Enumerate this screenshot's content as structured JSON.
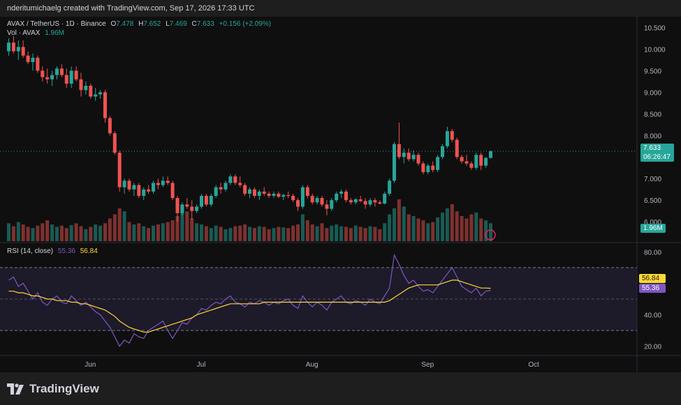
{
  "caption": "nderitumichaelg created with TradingView.com, Sep 17, 2026 17:33 UTC",
  "symbol_line": {
    "symbol": "AVAX / TetherUS · 1D · Binance",
    "o_label": "O",
    "o": "7.478",
    "h_label": "H",
    "h": "7.652",
    "l_label": "L",
    "l": "7.469",
    "c_label": "C",
    "c": "7.633",
    "change": "+0.156 (+2.09%)"
  },
  "vol_line": {
    "label": "Vol · AVAX",
    "value": "1.96M"
  },
  "rsi_line": {
    "label": "RSI (14, close)",
    "rsi": "55.36",
    "ma": "56.84"
  },
  "last_price": {
    "price": "7.633",
    "countdown": "06:26:47"
  },
  "vol_tag": "1.96M",
  "rsi_tags": {
    "ma": "56.84",
    "rsi": "55.36"
  },
  "brand": "TradingView",
  "colors": {
    "up": "#26a69a",
    "down": "#ef5350",
    "rsi": "#7e57c2",
    "rsi_ma": "#fdd835",
    "band": "#2a2540"
  },
  "chart_data": [
    {
      "type": "candlestick",
      "title": "AVAX / TetherUS · 1D · Binance",
      "y_ticks": [
        "10.500",
        "10.000",
        "9.500",
        "9.000",
        "8.500",
        "8.000",
        "7.500",
        "7.000",
        "6.500",
        "6.000"
      ],
      "ylim": [
        5.55,
        10.75
      ],
      "x_ticks": [
        "Jun",
        "Jul",
        "Aug",
        "Sep",
        "Oct"
      ],
      "ohlc": [
        [
          9.95,
          10.25,
          9.85,
          10.15
        ],
        [
          10.15,
          10.3,
          9.9,
          9.95
        ],
        [
          9.95,
          10.2,
          9.75,
          10.05
        ],
        [
          10.05,
          10.2,
          9.8,
          9.85
        ],
        [
          9.85,
          9.95,
          9.65,
          9.7
        ],
        [
          9.7,
          9.9,
          9.5,
          9.8
        ],
        [
          9.8,
          9.85,
          9.45,
          9.5
        ],
        [
          9.5,
          9.6,
          9.25,
          9.35
        ],
        [
          9.35,
          9.55,
          9.2,
          9.3
        ],
        [
          9.3,
          9.5,
          9.15,
          9.4
        ],
        [
          9.4,
          9.6,
          9.3,
          9.55
        ],
        [
          9.55,
          9.65,
          9.35,
          9.4
        ],
        [
          9.4,
          9.55,
          9.1,
          9.2
        ],
        [
          9.2,
          9.6,
          9.1,
          9.5
        ],
        [
          9.5,
          9.6,
          9.25,
          9.3
        ],
        [
          9.3,
          9.45,
          8.9,
          9.05
        ],
        [
          9.05,
          9.25,
          8.95,
          9.15
        ],
        [
          9.15,
          9.2,
          8.85,
          8.9
        ],
        [
          8.9,
          9.1,
          8.8,
          8.95
        ],
        [
          8.95,
          9.05,
          8.85,
          9.0
        ],
        [
          9.0,
          9.05,
          8.3,
          8.4
        ],
        [
          8.4,
          8.45,
          8.0,
          8.05
        ],
        [
          8.05,
          8.1,
          7.55,
          7.6
        ],
        [
          7.6,
          7.65,
          6.7,
          6.8
        ],
        [
          6.8,
          7.0,
          6.65,
          6.95
        ],
        [
          6.95,
          7.0,
          6.7,
          6.75
        ],
        [
          6.75,
          6.9,
          6.6,
          6.85
        ],
        [
          6.85,
          6.9,
          6.55,
          6.6
        ],
        [
          6.6,
          6.8,
          6.5,
          6.75
        ],
        [
          6.75,
          6.85,
          6.65,
          6.7
        ],
        [
          6.7,
          6.95,
          6.65,
          6.9
        ],
        [
          6.9,
          7.0,
          6.75,
          6.85
        ],
        [
          6.85,
          7.05,
          6.8,
          6.95
        ],
        [
          6.95,
          7.05,
          6.85,
          6.9
        ],
        [
          6.9,
          6.95,
          6.5,
          6.55
        ],
        [
          6.55,
          6.6,
          6.0,
          6.2
        ],
        [
          6.2,
          6.45,
          6.15,
          6.4
        ],
        [
          6.4,
          6.55,
          6.3,
          6.35
        ],
        [
          6.35,
          6.5,
          6.05,
          6.25
        ],
        [
          6.25,
          6.4,
          6.2,
          6.35
        ],
        [
          6.35,
          6.65,
          6.3,
          6.6
        ],
        [
          6.6,
          6.65,
          6.35,
          6.4
        ],
        [
          6.4,
          6.65,
          6.35,
          6.6
        ],
        [
          6.6,
          6.85,
          6.55,
          6.8
        ],
        [
          6.8,
          6.9,
          6.65,
          6.75
        ],
        [
          6.75,
          6.95,
          6.7,
          6.9
        ],
        [
          6.9,
          7.1,
          6.85,
          7.05
        ],
        [
          7.05,
          7.1,
          6.85,
          6.9
        ],
        [
          6.9,
          7.05,
          6.8,
          6.85
        ],
        [
          6.85,
          6.9,
          6.6,
          6.65
        ],
        [
          6.65,
          6.8,
          6.55,
          6.75
        ],
        [
          6.75,
          6.8,
          6.55,
          6.6
        ],
        [
          6.6,
          6.75,
          6.5,
          6.7
        ],
        [
          6.7,
          6.8,
          6.6,
          6.65
        ],
        [
          6.65,
          6.7,
          6.55,
          6.6
        ],
        [
          6.6,
          6.7,
          6.55,
          6.65
        ],
        [
          6.65,
          6.7,
          6.55,
          6.58
        ],
        [
          6.58,
          6.65,
          6.5,
          6.62
        ],
        [
          6.62,
          6.7,
          6.55,
          6.6
        ],
        [
          6.6,
          6.65,
          6.45,
          6.5
        ],
        [
          6.5,
          6.55,
          6.25,
          6.35
        ],
        [
          6.35,
          6.85,
          6.3,
          6.8
        ],
        [
          6.8,
          6.85,
          6.55,
          6.6
        ],
        [
          6.6,
          6.65,
          6.4,
          6.45
        ],
        [
          6.45,
          6.6,
          6.4,
          6.55
        ],
        [
          6.55,
          6.6,
          6.35,
          6.4
        ],
        [
          6.4,
          6.5,
          6.15,
          6.3
        ],
        [
          6.3,
          6.55,
          6.25,
          6.5
        ],
        [
          6.5,
          6.7,
          6.45,
          6.65
        ],
        [
          6.65,
          6.75,
          6.55,
          6.7
        ],
        [
          6.7,
          6.75,
          6.45,
          6.5
        ],
        [
          6.5,
          6.55,
          6.4,
          6.45
        ],
        [
          6.45,
          6.55,
          6.4,
          6.52
        ],
        [
          6.52,
          6.6,
          6.45,
          6.48
        ],
        [
          6.48,
          6.55,
          6.3,
          6.4
        ],
        [
          6.4,
          6.55,
          6.35,
          6.5
        ],
        [
          6.5,
          6.55,
          6.35,
          6.45
        ],
        [
          6.45,
          6.5,
          6.4,
          6.42
        ],
        [
          6.42,
          6.7,
          6.4,
          6.65
        ],
        [
          6.65,
          7.0,
          6.6,
          6.95
        ],
        [
          6.95,
          7.85,
          6.9,
          7.8
        ],
        [
          7.8,
          8.3,
          7.45,
          7.5
        ],
        [
          7.5,
          7.7,
          7.35,
          7.6
        ],
        [
          7.6,
          7.7,
          7.4,
          7.45
        ],
        [
          7.45,
          7.65,
          7.4,
          7.55
        ],
        [
          7.55,
          7.6,
          7.3,
          7.35
        ],
        [
          7.35,
          7.4,
          7.1,
          7.15
        ],
        [
          7.15,
          7.35,
          7.1,
          7.3
        ],
        [
          7.3,
          7.4,
          7.15,
          7.2
        ],
        [
          7.2,
          7.55,
          7.15,
          7.5
        ],
        [
          7.5,
          7.8,
          7.45,
          7.75
        ],
        [
          7.75,
          8.2,
          7.7,
          8.1
        ],
        [
          8.1,
          8.15,
          7.85,
          7.9
        ],
        [
          7.9,
          7.95,
          7.45,
          7.5
        ],
        [
          7.5,
          7.55,
          7.35,
          7.4
        ],
        [
          7.4,
          7.55,
          7.3,
          7.35
        ],
        [
          7.35,
          7.4,
          7.2,
          7.25
        ],
        [
          7.25,
          7.6,
          7.2,
          7.55
        ],
        [
          7.55,
          7.6,
          7.2,
          7.3
        ],
        [
          7.3,
          7.5,
          7.25,
          7.48
        ],
        [
          7.478,
          7.652,
          7.469,
          7.633
        ]
      ]
    },
    {
      "type": "bar",
      "title": "Vol · AVAX",
      "last_value_label": "1.96M",
      "values": [
        30,
        25,
        32,
        28,
        24,
        22,
        26,
        30,
        35,
        28,
        24,
        26,
        22,
        27,
        30,
        25,
        20,
        24,
        28,
        26,
        30,
        38,
        45,
        55,
        50,
        32,
        28,
        30,
        25,
        22,
        26,
        28,
        30,
        32,
        35,
        42,
        55,
        50,
        38,
        30,
        28,
        25,
        22,
        26,
        24,
        20,
        22,
        25,
        26,
        28,
        24,
        22,
        25,
        24,
        20,
        22,
        24,
        23,
        22,
        26,
        28,
        45,
        35,
        28,
        25,
        30,
        22,
        26,
        28,
        25,
        24,
        22,
        26,
        24,
        22,
        25,
        24,
        20,
        30,
        45,
        55,
        70,
        58,
        45,
        42,
        38,
        35,
        30,
        32,
        40,
        48,
        55,
        62,
        50,
        42,
        38,
        45,
        48,
        38,
        35,
        30
      ]
    },
    {
      "type": "line",
      "title": "RSI (14, close)",
      "y_ticks": [
        "80.00",
        "40.00",
        "20.00"
      ],
      "ylim": [
        15,
        85
      ],
      "bands": [
        70,
        30
      ],
      "series": [
        {
          "name": "RSI",
          "values": [
            62,
            64,
            58,
            60,
            55,
            50,
            54,
            48,
            46,
            50,
            52,
            48,
            47,
            52,
            49,
            46,
            48,
            45,
            42,
            40,
            36,
            32,
            26,
            20,
            24,
            22,
            28,
            26,
            25,
            30,
            32,
            34,
            36,
            30,
            25,
            30,
            35,
            34,
            38,
            40,
            44,
            43,
            46,
            48,
            47,
            50,
            52,
            48,
            47,
            45,
            48,
            47,
            49,
            48,
            46,
            48,
            47,
            49,
            50,
            46,
            44,
            52,
            48,
            45,
            48,
            46,
            43,
            48,
            50,
            52,
            48,
            47,
            49,
            48,
            46,
            50,
            48,
            47,
            52,
            57,
            78,
            72,
            65,
            60,
            62,
            58,
            55,
            56,
            54,
            58,
            62,
            66,
            70,
            64,
            58,
            56,
            54,
            57,
            52,
            55,
            55.36
          ]
        },
        {
          "name": "RSI-based MA",
          "values": [
            55,
            55,
            54,
            54,
            53,
            52,
            52,
            51,
            50,
            50,
            49,
            49,
            49,
            48,
            48,
            47,
            47,
            46,
            45,
            44,
            43,
            41,
            39,
            36,
            34,
            32,
            31,
            30,
            29,
            29,
            30,
            31,
            32,
            33,
            34,
            35,
            36,
            37,
            38,
            40,
            41,
            42,
            43,
            44,
            45,
            46,
            47,
            47,
            47,
            47,
            47,
            47,
            47,
            48,
            48,
            48,
            48,
            48,
            48,
            48,
            48,
            48,
            48,
            48,
            48,
            48,
            48,
            48,
            48,
            48,
            48,
            48,
            48,
            48,
            48,
            48,
            48,
            48,
            48,
            49,
            51,
            53,
            55,
            57,
            58,
            59,
            59,
            59,
            59,
            59,
            60,
            61,
            62,
            62,
            61,
            60,
            59,
            58,
            57,
            57,
            56.84
          ]
        }
      ]
    }
  ]
}
